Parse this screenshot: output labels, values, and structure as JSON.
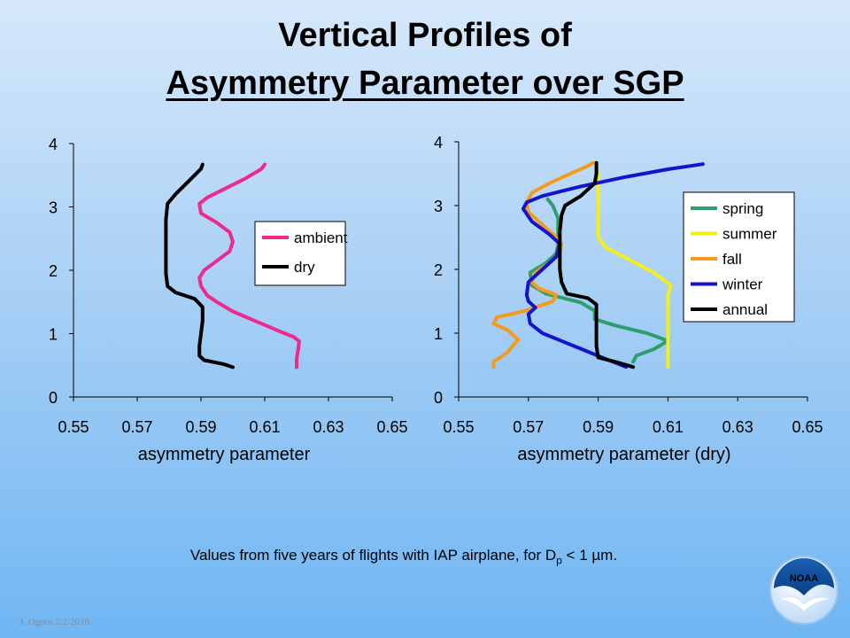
{
  "slide": {
    "title_line1": "Vertical Profiles of",
    "title_line2": "Asymmetry Parameter over SGP",
    "caption_before": "Values from five years of flights with IAP airplane, for D",
    "caption_sub": "p",
    "caption_after": " < 1 µm.",
    "footer": "J. Ogren  2/2/2016",
    "logo_text": "NOAA",
    "logo_icon": "noaa-bird-logo-icon"
  },
  "chart_data": [
    {
      "type": "line",
      "orientation": "vertical-profile",
      "xlabel": "asymmetry parameter",
      "ylabel": "",
      "xlim": [
        0.55,
        0.65
      ],
      "ylim": [
        0,
        4
      ],
      "x_ticks": [
        "0.55",
        "0.57",
        "0.59",
        "0.61",
        "0.63",
        "0.65"
      ],
      "y_ticks": [
        "0",
        "1",
        "2",
        "3",
        "4"
      ],
      "grid": false,
      "legend_position": "center-right",
      "series": [
        {
          "name": "ambient",
          "color": "#ee2a8c",
          "points": [
            [
              0.62,
              0.47
            ],
            [
              0.62,
              0.6
            ],
            [
              0.6205,
              0.75
            ],
            [
              0.6208,
              0.88
            ],
            [
              0.619,
              0.95
            ],
            [
              0.614,
              1.05
            ],
            [
              0.607,
              1.2
            ],
            [
              0.6,
              1.35
            ],
            [
              0.595,
              1.5
            ],
            [
              0.592,
              1.6
            ],
            [
              0.59,
              1.75
            ],
            [
              0.5895,
              1.88
            ],
            [
              0.591,
              2.0
            ],
            [
              0.595,
              2.15
            ],
            [
              0.599,
              2.3
            ],
            [
              0.6,
              2.45
            ],
            [
              0.599,
              2.6
            ],
            [
              0.595,
              2.75
            ],
            [
              0.59,
              2.9
            ],
            [
              0.5895,
              3.05
            ],
            [
              0.592,
              3.15
            ],
            [
              0.598,
              3.3
            ],
            [
              0.604,
              3.45
            ],
            [
              0.609,
              3.6
            ],
            [
              0.61,
              3.67
            ]
          ]
        },
        {
          "name": "dry",
          "color": "#000000",
          "points": [
            [
              0.6,
              0.47
            ],
            [
              0.597,
              0.52
            ],
            [
              0.591,
              0.58
            ],
            [
              0.5895,
              0.65
            ],
            [
              0.5895,
              0.8
            ],
            [
              0.59,
              1.0
            ],
            [
              0.5905,
              1.2
            ],
            [
              0.5905,
              1.42
            ],
            [
              0.588,
              1.55
            ],
            [
              0.582,
              1.65
            ],
            [
              0.5795,
              1.75
            ],
            [
              0.579,
              1.95
            ],
            [
              0.579,
              2.2
            ],
            [
              0.579,
              2.5
            ],
            [
              0.579,
              2.8
            ],
            [
              0.5795,
              3.05
            ],
            [
              0.582,
              3.2
            ],
            [
              0.586,
              3.4
            ],
            [
              0.59,
              3.6
            ],
            [
              0.5905,
              3.67
            ]
          ]
        }
      ]
    },
    {
      "type": "line",
      "orientation": "vertical-profile",
      "xlabel": "asymmetry parameter (dry)",
      "ylabel": "",
      "xlim": [
        0.55,
        0.65
      ],
      "ylim": [
        0,
        4
      ],
      "x_ticks": [
        "0.55",
        "0.57",
        "0.59",
        "0.61",
        "0.63",
        "0.65"
      ],
      "y_ticks": [
        "0",
        "1",
        "2",
        "3",
        "4"
      ],
      "grid": false,
      "legend_position": "top-right",
      "series": [
        {
          "name": "spring",
          "color": "#2e9e6e",
          "points": [
            [
              0.6,
              0.55
            ],
            [
              0.601,
              0.65
            ],
            [
              0.606,
              0.75
            ],
            [
              0.61,
              0.88
            ],
            [
              0.604,
              1.0
            ],
            [
              0.595,
              1.12
            ],
            [
              0.589,
              1.22
            ],
            [
              0.589,
              1.35
            ],
            [
              0.585,
              1.48
            ],
            [
              0.58,
              1.55
            ],
            [
              0.575,
              1.62
            ],
            [
              0.571,
              1.75
            ],
            [
              0.5705,
              1.95
            ],
            [
              0.575,
              2.1
            ],
            [
              0.578,
              2.25
            ],
            [
              0.5785,
              2.4
            ],
            [
              0.5785,
              2.6
            ],
            [
              0.5785,
              2.8
            ],
            [
              0.577,
              3.0
            ],
            [
              0.5755,
              3.1
            ]
          ]
        },
        {
          "name": "summer",
          "color": "#f2ef1b",
          "points": [
            [
              0.61,
              0.47
            ],
            [
              0.61,
              0.8
            ],
            [
              0.61,
              1.1
            ],
            [
              0.61,
              1.35
            ],
            [
              0.61,
              1.6
            ],
            [
              0.6108,
              1.75
            ],
            [
              0.606,
              1.95
            ],
            [
              0.599,
              2.15
            ],
            [
              0.592,
              2.35
            ],
            [
              0.59,
              2.5
            ],
            [
              0.59,
              2.8
            ],
            [
              0.59,
              3.1
            ],
            [
              0.59,
              3.4
            ],
            [
              0.5895,
              3.66
            ]
          ]
        },
        {
          "name": "fall",
          "color": "#f59a1c",
          "points": [
            [
              0.56,
              0.47
            ],
            [
              0.56,
              0.55
            ],
            [
              0.564,
              0.7
            ],
            [
              0.567,
              0.9
            ],
            [
              0.564,
              1.05
            ],
            [
              0.56,
              1.15
            ],
            [
              0.561,
              1.25
            ],
            [
              0.569,
              1.35
            ],
            [
              0.577,
              1.5
            ],
            [
              0.578,
              1.6
            ],
            [
              0.573,
              1.7
            ],
            [
              0.571,
              1.8
            ],
            [
              0.572,
              1.95
            ],
            [
              0.576,
              2.1
            ],
            [
              0.579,
              2.25
            ],
            [
              0.5795,
              2.4
            ],
            [
              0.577,
              2.55
            ],
            [
              0.573,
              2.75
            ],
            [
              0.57,
              2.9
            ],
            [
              0.5695,
              3.05
            ],
            [
              0.571,
              3.2
            ],
            [
              0.576,
              3.35
            ],
            [
              0.582,
              3.5
            ],
            [
              0.587,
              3.62
            ],
            [
              0.5885,
              3.67
            ]
          ]
        },
        {
          "name": "winter",
          "color": "#1414cc",
          "points": [
            [
              0.598,
              0.47
            ],
            [
              0.592,
              0.6
            ],
            [
              0.583,
              0.8
            ],
            [
              0.574,
              1.0
            ],
            [
              0.5705,
              1.15
            ],
            [
              0.57,
              1.3
            ],
            [
              0.572,
              1.4
            ],
            [
              0.57,
              1.5
            ],
            [
              0.5695,
              1.6
            ],
            [
              0.57,
              1.8
            ],
            [
              0.574,
              2.0
            ],
            [
              0.578,
              2.2
            ],
            [
              0.579,
              2.4
            ],
            [
              0.576,
              2.55
            ],
            [
              0.571,
              2.75
            ],
            [
              0.5685,
              2.95
            ],
            [
              0.5695,
              3.05
            ],
            [
              0.574,
              3.15
            ],
            [
              0.585,
              3.3
            ],
            [
              0.598,
              3.45
            ],
            [
              0.61,
              3.57
            ],
            [
              0.62,
              3.65
            ]
          ]
        },
        {
          "name": "annual",
          "color": "#000000",
          "points": [
            [
              0.6,
              0.47
            ],
            [
              0.595,
              0.55
            ],
            [
              0.59,
              0.62
            ],
            [
              0.5895,
              0.8
            ],
            [
              0.5895,
              1.0
            ],
            [
              0.5895,
              1.2
            ],
            [
              0.5895,
              1.45
            ],
            [
              0.587,
              1.55
            ],
            [
              0.581,
              1.62
            ],
            [
              0.5795,
              1.8
            ],
            [
              0.579,
              2.0
            ],
            [
              0.579,
              2.3
            ],
            [
              0.579,
              2.6
            ],
            [
              0.5795,
              2.85
            ],
            [
              0.5805,
              3.0
            ],
            [
              0.585,
              3.15
            ],
            [
              0.589,
              3.35
            ],
            [
              0.5895,
              3.5
            ],
            [
              0.5895,
              3.67
            ]
          ]
        }
      ]
    }
  ]
}
